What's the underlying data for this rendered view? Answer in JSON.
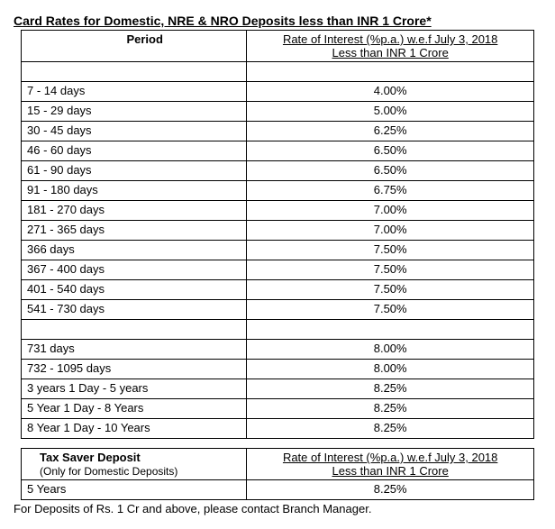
{
  "title": "Card Rates for Domestic, NRE & NRO Deposits less than INR 1 Crore*",
  "mainTable": {
    "headers": {
      "period": "Period",
      "rateLine1": "Rate of Interest (%p.a.) w.e.f July 3, 2018",
      "rateLine2": "Less than INR 1 Crore"
    },
    "rows": [
      {
        "period": "",
        "rate": ""
      },
      {
        "period": "7 - 14 days",
        "rate": "4.00%"
      },
      {
        "period": "15 - 29 days",
        "rate": "5.00%"
      },
      {
        "period": "30 - 45 days",
        "rate": "6.25%"
      },
      {
        "period": "46 - 60 days",
        "rate": "6.50%"
      },
      {
        "period": "61 - 90 days",
        "rate": "6.50%"
      },
      {
        "period": "91 - 180 days",
        "rate": "6.75%"
      },
      {
        "period": "181 - 270 days",
        "rate": "7.00%"
      },
      {
        "period": "271 - 365 days",
        "rate": "7.00%"
      },
      {
        "period": "366 days",
        "rate": "7.50%"
      },
      {
        "period": "367 - 400 days",
        "rate": "7.50%"
      },
      {
        "period": "401 - 540 days",
        "rate": "7.50%"
      },
      {
        "period": "541 - 730 days",
        "rate": "7.50%"
      },
      {
        "period": "",
        "rate": ""
      },
      {
        "period": "731 days",
        "rate": "8.00%"
      },
      {
        "period": "732 - 1095 days",
        "rate": "8.00%"
      },
      {
        "period": "3 years 1 Day - 5 years",
        "rate": "8.25%"
      },
      {
        "period": "5 Year 1 Day - 8 Years",
        "rate": "8.25%"
      },
      {
        "period": "8 Year 1 Day - 10 Years",
        "rate": "8.25%"
      }
    ]
  },
  "taxTable": {
    "headers": {
      "title": "Tax Saver Deposit",
      "subtitle": "(Only for Domestic Deposits)",
      "rateLine1": "Rate of Interest (%p.a.) w.e.f July 3, 2018",
      "rateLine2": "Less than INR 1 Crore"
    },
    "rows": [
      {
        "period": "5 Years",
        "rate": "8.25%"
      }
    ]
  },
  "footnote": "For Deposits of Rs. 1 Cr and above, please contact Branch Manager."
}
